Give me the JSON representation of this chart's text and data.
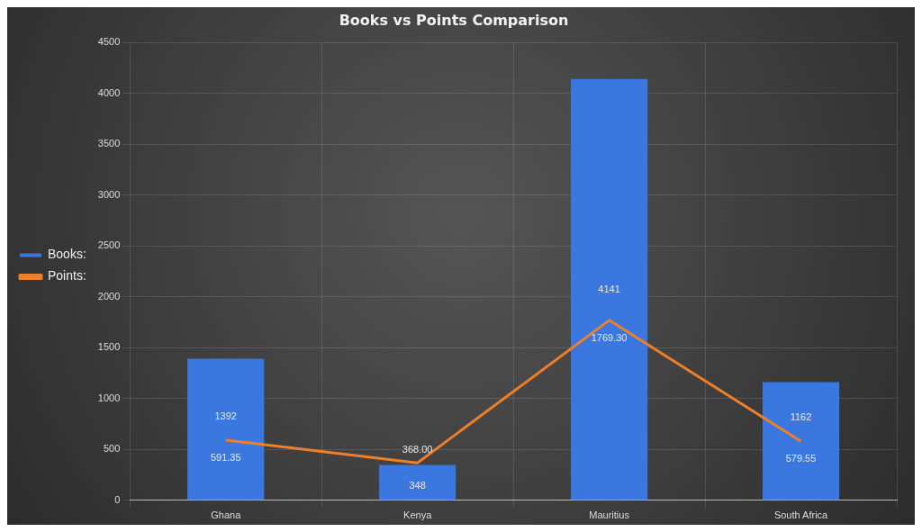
{
  "chart_data": {
    "type": "bar",
    "title": "Books vs Points Comparison",
    "categories": [
      "Ghana",
      "Kenya",
      "Mauritius",
      "South Africa"
    ],
    "series": [
      {
        "name": "Books:",
        "color": "#3a78e0",
        "values": [
          1392,
          348,
          4141,
          1162
        ],
        "value_labels": [
          "1392",
          "348",
          "4141",
          "1162"
        ]
      },
      {
        "name": "Points:",
        "type": "line",
        "color": "#f07f2a",
        "values": [
          591.35,
          368.0,
          1769.3,
          579.55
        ],
        "value_labels": [
          "591.35",
          "368.00",
          "1769.30",
          "579.55"
        ],
        "marker": "none"
      }
    ],
    "ylim": [
      0,
      4500
    ],
    "yticks": [
      0,
      500,
      1000,
      1500,
      2000,
      2500,
      3000,
      3500,
      4000,
      4500
    ],
    "grid": true,
    "legend": "left"
  }
}
